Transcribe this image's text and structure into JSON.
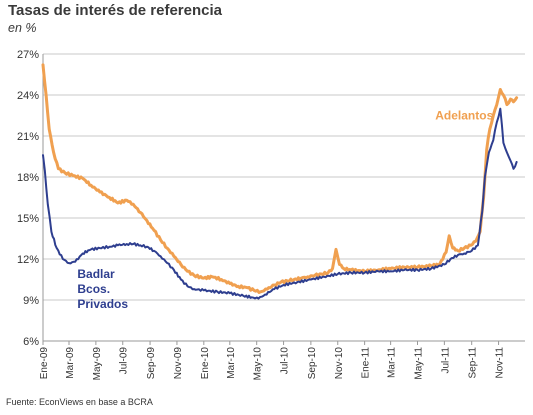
{
  "title": "Tasas de interés de referencia",
  "subtitle": "en %",
  "source": "Fuente: EconViews en base a BCRA",
  "colors": {
    "badlar": "#2e3e8f",
    "adelantos": "#f0a050",
    "grid": "#c8c8c8",
    "axis": "#9a9a9a"
  },
  "chart_data": {
    "type": "line",
    "ylim": [
      6,
      27
    ],
    "yticks": [
      "6%",
      "9%",
      "12%",
      "15%",
      "18%",
      "21%",
      "24%",
      "27%"
    ],
    "ytick_values": [
      6,
      9,
      12,
      15,
      18,
      21,
      24,
      27
    ],
    "xlim": [
      "2009-01-01",
      "2011-12-31"
    ],
    "xticks": [
      "Ene-09",
      "Mar-09",
      "May-09",
      "Jul-09",
      "Sep-09",
      "Nov-09",
      "Ene-10",
      "Mar-10",
      "May-10",
      "Jul-10",
      "Sep-10",
      "Nov-10",
      "Ene-11",
      "Mar-11",
      "May-11",
      "Jul-11",
      "Sep-11",
      "Nov-11"
    ],
    "xtick_dates": [
      "2009-01-01",
      "2009-03-01",
      "2009-05-01",
      "2009-07-01",
      "2009-09-01",
      "2009-11-01",
      "2010-01-01",
      "2010-03-01",
      "2010-05-01",
      "2010-07-01",
      "2010-09-01",
      "2010-11-01",
      "2011-01-01",
      "2011-03-01",
      "2011-05-01",
      "2011-07-01",
      "2011-09-01",
      "2011-11-01"
    ],
    "grid": "horizontal",
    "series": [
      {
        "name": "Adelantos",
        "label_lines": [
          "Adelantos"
        ],
        "label_anchor": [
          "2011-10-20",
          22.2
        ],
        "points": [
          [
            "2009-01-01",
            26.2
          ],
          [
            "2009-01-08",
            24.0
          ],
          [
            "2009-01-15",
            21.5
          ],
          [
            "2009-01-25",
            19.8
          ],
          [
            "2009-02-05",
            18.6
          ],
          [
            "2009-02-20",
            18.3
          ],
          [
            "2009-03-10",
            18.1
          ],
          [
            "2009-04-01",
            17.9
          ],
          [
            "2009-04-20",
            17.4
          ],
          [
            "2009-05-10",
            16.9
          ],
          [
            "2009-06-01",
            16.5
          ],
          [
            "2009-06-20",
            16.1
          ],
          [
            "2009-07-10",
            16.3
          ],
          [
            "2009-07-25",
            16.0
          ],
          [
            "2009-08-10",
            15.4
          ],
          [
            "2009-08-25",
            14.8
          ],
          [
            "2009-09-10",
            14.1
          ],
          [
            "2009-09-25",
            13.4
          ],
          [
            "2009-10-10",
            12.8
          ],
          [
            "2009-10-25",
            12.2
          ],
          [
            "2009-11-10",
            11.6
          ],
          [
            "2009-11-25",
            11.1
          ],
          [
            "2009-12-10",
            10.8
          ],
          [
            "2010-01-01",
            10.6
          ],
          [
            "2010-01-20",
            10.7
          ],
          [
            "2010-02-10",
            10.5
          ],
          [
            "2010-03-01",
            10.2
          ],
          [
            "2010-03-20",
            10.0
          ],
          [
            "2010-04-10",
            9.9
          ],
          [
            "2010-04-25",
            9.7
          ],
          [
            "2010-05-10",
            9.6
          ],
          [
            "2010-05-25",
            9.8
          ],
          [
            "2010-06-10",
            10.1
          ],
          [
            "2010-06-25",
            10.3
          ],
          [
            "2010-07-10",
            10.4
          ],
          [
            "2010-07-25",
            10.5
          ],
          [
            "2010-08-10",
            10.6
          ],
          [
            "2010-08-25",
            10.7
          ],
          [
            "2010-09-10",
            10.8
          ],
          [
            "2010-09-25",
            10.9
          ],
          [
            "2010-10-10",
            11.0
          ],
          [
            "2010-10-20",
            11.3
          ],
          [
            "2010-10-28",
            12.7
          ],
          [
            "2010-11-05",
            11.6
          ],
          [
            "2010-11-15",
            11.3
          ],
          [
            "2010-12-01",
            11.2
          ],
          [
            "2011-01-01",
            11.1
          ],
          [
            "2011-02-01",
            11.2
          ],
          [
            "2011-03-01",
            11.3
          ],
          [
            "2011-04-01",
            11.4
          ],
          [
            "2011-05-01",
            11.4
          ],
          [
            "2011-06-01",
            11.5
          ],
          [
            "2011-06-20",
            11.6
          ],
          [
            "2011-07-05",
            12.5
          ],
          [
            "2011-07-12",
            13.7
          ],
          [
            "2011-07-20",
            12.8
          ],
          [
            "2011-08-01",
            12.6
          ],
          [
            "2011-08-15",
            12.8
          ],
          [
            "2011-08-30",
            13.0
          ],
          [
            "2011-09-10",
            13.3
          ],
          [
            "2011-09-20",
            14.0
          ],
          [
            "2011-09-28",
            16.5
          ],
          [
            "2011-10-05",
            20.0
          ],
          [
            "2011-10-12",
            21.5
          ],
          [
            "2011-10-20",
            22.5
          ],
          [
            "2011-10-28",
            23.3
          ],
          [
            "2011-11-05",
            24.4
          ],
          [
            "2011-11-12",
            24.0
          ],
          [
            "2011-11-20",
            23.3
          ],
          [
            "2011-11-28",
            23.7
          ],
          [
            "2011-12-05",
            23.5
          ],
          [
            "2011-12-12",
            23.8
          ]
        ]
      },
      {
        "name": "Badlar Bcos. Privados",
        "label_lines": [
          "Badlar",
          "Bcos.",
          "Privados"
        ],
        "label_anchor": [
          "2009-03-20",
          10.6
        ],
        "points": [
          [
            "2009-01-01",
            19.6
          ],
          [
            "2009-01-05",
            18.5
          ],
          [
            "2009-01-12",
            16.0
          ],
          [
            "2009-01-20",
            14.0
          ],
          [
            "2009-02-01",
            12.8
          ],
          [
            "2009-02-15",
            12.0
          ],
          [
            "2009-03-01",
            11.7
          ],
          [
            "2009-03-15",
            11.8
          ],
          [
            "2009-04-01",
            12.4
          ],
          [
            "2009-04-20",
            12.7
          ],
          [
            "2009-05-10",
            12.8
          ],
          [
            "2009-06-01",
            12.9
          ],
          [
            "2009-06-20",
            13.0
          ],
          [
            "2009-07-10",
            13.1
          ],
          [
            "2009-07-25",
            13.1
          ],
          [
            "2009-08-10",
            13.0
          ],
          [
            "2009-08-25",
            12.9
          ],
          [
            "2009-09-10",
            12.6
          ],
          [
            "2009-09-25",
            12.2
          ],
          [
            "2009-10-10",
            11.7
          ],
          [
            "2009-10-25",
            11.2
          ],
          [
            "2009-11-10",
            10.5
          ],
          [
            "2009-11-25",
            10.0
          ],
          [
            "2009-12-10",
            9.8
          ],
          [
            "2010-01-01",
            9.7
          ],
          [
            "2010-02-01",
            9.6
          ],
          [
            "2010-03-01",
            9.5
          ],
          [
            "2010-04-01",
            9.3
          ],
          [
            "2010-04-20",
            9.2
          ],
          [
            "2010-05-05",
            9.1
          ],
          [
            "2010-05-20",
            9.4
          ],
          [
            "2010-06-10",
            9.8
          ],
          [
            "2010-07-01",
            10.1
          ],
          [
            "2010-08-01",
            10.3
          ],
          [
            "2010-09-01",
            10.5
          ],
          [
            "2010-10-01",
            10.7
          ],
          [
            "2010-11-01",
            10.9
          ],
          [
            "2010-12-01",
            11.0
          ],
          [
            "2011-01-01",
            11.0
          ],
          [
            "2011-02-01",
            11.1
          ],
          [
            "2011-03-01",
            11.1
          ],
          [
            "2011-04-01",
            11.2
          ],
          [
            "2011-05-01",
            11.2
          ],
          [
            "2011-06-01",
            11.3
          ],
          [
            "2011-07-01",
            11.6
          ],
          [
            "2011-07-15",
            12.0
          ],
          [
            "2011-08-01",
            12.3
          ],
          [
            "2011-08-15",
            12.4
          ],
          [
            "2011-09-01",
            12.6
          ],
          [
            "2011-09-15",
            13.0
          ],
          [
            "2011-09-25",
            15.5
          ],
          [
            "2011-10-01",
            18.0
          ],
          [
            "2011-10-10",
            19.8
          ],
          [
            "2011-10-20",
            20.7
          ],
          [
            "2011-10-28",
            22.0
          ],
          [
            "2011-11-05",
            23.0
          ],
          [
            "2011-11-12",
            20.5
          ],
          [
            "2011-11-20",
            19.8
          ],
          [
            "2011-11-28",
            19.2
          ],
          [
            "2011-12-05",
            18.6
          ],
          [
            "2011-12-12",
            19.1
          ]
        ]
      }
    ]
  }
}
